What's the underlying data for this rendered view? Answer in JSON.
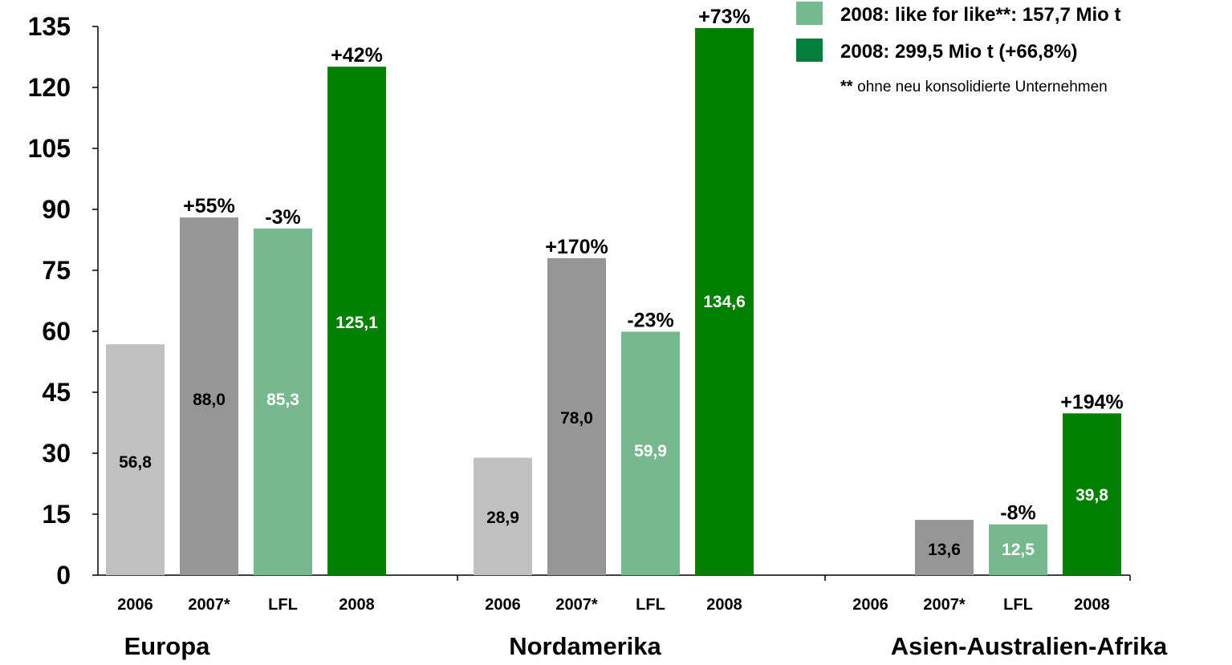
{
  "chart_data": {
    "type": "bar",
    "ylim": [
      0,
      135
    ],
    "yticks": [
      "0",
      "15",
      "30",
      "45",
      "60",
      "75",
      "90",
      "105",
      "120",
      "135"
    ],
    "grid": false,
    "legend_position": "top-right",
    "legend": [
      {
        "label": "2008: like for like**: 157,7 Mio t",
        "color": "#78b891"
      },
      {
        "label": "2008: 299,5 Mio t (+66,8%)",
        "color": "#007e3a"
      }
    ],
    "footnote": {
      "marker": "**",
      "text": "ohne neu konsolidierte Unternehmen"
    },
    "colors": {
      "2006": "#c0c0c0",
      "2007*": "#969696",
      "LFL": "#78b891",
      "2008": "#008000"
    },
    "groups": [
      {
        "name": "Europa",
        "bars": [
          {
            "category": "2006",
            "value": 56.8,
            "label": "56,8",
            "change": ""
          },
          {
            "category": "2007*",
            "value": 88.0,
            "label": "88,0",
            "change": "+55%"
          },
          {
            "category": "LFL",
            "value": 85.3,
            "label": "85,3",
            "change": "-3%"
          },
          {
            "category": "2008",
            "value": 125.1,
            "label": "125,1",
            "change": "+42%"
          }
        ]
      },
      {
        "name": "Nordamerika",
        "bars": [
          {
            "category": "2006",
            "value": 28.9,
            "label": "28,9",
            "change": ""
          },
          {
            "category": "2007*",
            "value": 78.0,
            "label": "78,0",
            "change": "+170%"
          },
          {
            "category": "LFL",
            "value": 59.9,
            "label": "59,9",
            "change": "-23%"
          },
          {
            "category": "2008",
            "value": 134.6,
            "label": "134,6",
            "change": "+73%"
          }
        ]
      },
      {
        "name": "Asien-Australien-Afrika",
        "bars": [
          {
            "category": "2006",
            "value": 0,
            "label": "",
            "change": ""
          },
          {
            "category": "2007*",
            "value": 13.6,
            "label": "13,6",
            "change": ""
          },
          {
            "category": "LFL",
            "value": 12.5,
            "label": "12,5",
            "change": "-8%"
          },
          {
            "category": "2008",
            "value": 39.8,
            "label": "39,8",
            "change": "+194%"
          }
        ]
      }
    ]
  }
}
